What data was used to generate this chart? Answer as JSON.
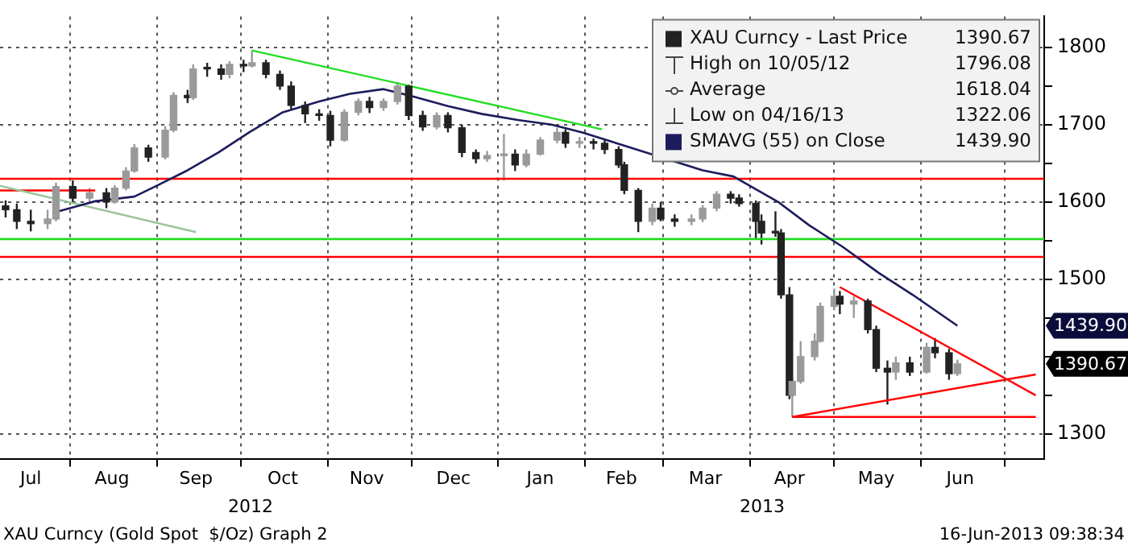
{
  "chart_data": {
    "type": "candlestick",
    "xlim": [
      "2012-07-07",
      "2013-07-15"
    ],
    "xticks": [
      {
        "value": "2012-07-18",
        "label": "Jul"
      },
      {
        "value": "2012-08-01",
        "label": null
      },
      {
        "value": "2012-08-16",
        "label": "Aug"
      },
      {
        "value": "2012-09-01",
        "label": null
      },
      {
        "value": "2012-09-15",
        "label": "Sep"
      },
      {
        "value": "2012-10-01",
        "label": null
      },
      {
        "value": "2012-10-16",
        "label": "Oct"
      },
      {
        "value": "2012-11-01",
        "label": null
      },
      {
        "value": "2012-11-15",
        "label": "Nov"
      },
      {
        "value": "2012-12-01",
        "label": null
      },
      {
        "value": "2012-12-16",
        "label": "Dec"
      },
      {
        "value": "2013-01-01",
        "label": null
      },
      {
        "value": "2013-01-16",
        "label": "Jan"
      },
      {
        "value": "2013-02-01",
        "label": null
      },
      {
        "value": "2013-02-14",
        "label": "Feb"
      },
      {
        "value": "2013-03-01",
        "label": null
      },
      {
        "value": "2013-03-16",
        "label": "Mar"
      },
      {
        "value": "2013-04-01",
        "label": null
      },
      {
        "value": "2013-04-15",
        "label": "Apr"
      },
      {
        "value": "2013-05-01",
        "label": null
      },
      {
        "value": "2013-05-16",
        "label": "May"
      },
      {
        "value": "2013-06-01",
        "label": null
      },
      {
        "value": "2013-06-15",
        "label": "Jun"
      },
      {
        "value": "2013-07-01",
        "label": null
      }
    ],
    "ylim": [
      1268,
      1840
    ],
    "yticks": [
      1300,
      {
        "value": 1350,
        "label": null
      },
      {
        "value": 1400,
        "label": null
      },
      {
        "value": 1450,
        "label": null
      },
      1500,
      {
        "value": 1550,
        "label": null
      },
      1600,
      {
        "value": 1650,
        "label": null
      },
      1700,
      {
        "value": 1750,
        "label": null
      },
      1800
    ],
    "grid": true,
    "legend": "top right",
    "series": [
      {
        "name": "XAU Curncy - Last Price",
        "color": "#222222",
        "colors": [
          "#222222",
          "#222222",
          "#222222",
          "#9a9a9a",
          "#9a9a9a",
          "#222222",
          "#9a9a9a",
          "#222222",
          "#9a9a9a",
          "#9a9a9a",
          "#9a9a9a",
          "#222222",
          "#9a9a9a",
          "#9a9a9a",
          "#222222",
          "#9a9a9a",
          "#222222",
          "#222222",
          "#9a9a9a",
          "#222222",
          "#9a9a9a",
          "#222222",
          "#222222",
          "#222222",
          "#222222",
          "#222222",
          "#222222",
          "#9a9a9a",
          "#9a9a9a",
          "#222222",
          "#9a9a9a",
          "#9a9a9a",
          "#222222",
          "#222222",
          "#9a9a9a",
          "#222222",
          "#222222",
          "#222222",
          "#9a9a9a",
          "#9a9a9a",
          "#222222",
          "#9a9a9a",
          "#9a9a9a",
          "#9a9a9a",
          "#222222",
          "#9a9a9a",
          "#222222",
          "#222222",
          "#222222",
          "#222222",
          "#222222",
          "#9a9a9a",
          "#222222",
          "#222222",
          "#9a9a9a",
          "#9a9a9a",
          "#9a9a9a",
          "#222222",
          "#222222",
          "#222222",
          "#222222",
          "#222222",
          "#222222",
          "#222222",
          "#9a9a9a",
          "#9a9a9a",
          "#9a9a9a",
          "#9a9a9a",
          "#9a9a9a",
          "#222222",
          "#9a9a9a",
          "#222222",
          "#222222",
          "#222222",
          "#9a9a9a",
          "#222222",
          "#9a9a9a",
          "#222222",
          "#222222",
          "#9a9a9a"
        ],
        "x": [
          "2012-07-09",
          "2012-07-13",
          "2012-07-18",
          "2012-07-24",
          "2012-07-27",
          "2012-08-02",
          "2012-08-08",
          "2012-08-14",
          "2012-08-17",
          "2012-08-21",
          "2012-08-24",
          "2012-08-29",
          "2012-09-04",
          "2012-09-07",
          "2012-09-12",
          "2012-09-14",
          "2012-09-19",
          "2012-09-24",
          "2012-09-27",
          "2012-10-02",
          "2012-10-05",
          "2012-10-10",
          "2012-10-15",
          "2012-10-19",
          "2012-10-24",
          "2012-10-29",
          "2012-11-02",
          "2012-11-07",
          "2012-11-12",
          "2012-11-16",
          "2012-11-21",
          "2012-11-26",
          "2012-11-30",
          "2012-12-05",
          "2012-12-10",
          "2012-12-14",
          "2012-12-19",
          "2012-12-24",
          "2012-12-28",
          "2013-01-03",
          "2013-01-07",
          "2013-01-11",
          "2013-01-16",
          "2013-01-22",
          "2013-01-25",
          "2013-01-30",
          "2013-02-04",
          "2013-02-08",
          "2013-02-13",
          "2013-02-15",
          "2013-02-20",
          "2013-02-25",
          "2013-02-28",
          "2013-03-05",
          "2013-03-11",
          "2013-03-15",
          "2013-03-20",
          "2013-03-25",
          "2013-03-28",
          "2013-04-03",
          "2013-04-05",
          "2013-04-10",
          "2013-04-12",
          "2013-04-15",
          "2013-04-16",
          "2013-04-19",
          "2013-04-24",
          "2013-04-26",
          "2013-05-01",
          "2013-05-03",
          "2013-05-08",
          "2013-05-13",
          "2013-05-16",
          "2013-05-20",
          "2013-05-23",
          "2013-05-28",
          "2013-06-03",
          "2013-06-06",
          "2013-06-11",
          "2013-06-14"
        ],
        "ohlc": [
          [
            1595,
            1602,
            1580,
            1590
          ],
          [
            1590,
            1598,
            1565,
            1575
          ],
          [
            1575,
            1590,
            1562,
            1572
          ],
          [
            1572,
            1590,
            1565,
            1578
          ],
          [
            1578,
            1625,
            1575,
            1620
          ],
          [
            1620,
            1628,
            1598,
            1605
          ],
          [
            1605,
            1618,
            1600,
            1612
          ],
          [
            1612,
            1618,
            1592,
            1600
          ],
          [
            1600,
            1622,
            1598,
            1618
          ],
          [
            1618,
            1645,
            1615,
            1640
          ],
          [
            1640,
            1675,
            1638,
            1670
          ],
          [
            1670,
            1674,
            1652,
            1658
          ],
          [
            1658,
            1698,
            1655,
            1693
          ],
          [
            1693,
            1742,
            1690,
            1738
          ],
          [
            1738,
            1745,
            1728,
            1735
          ],
          [
            1735,
            1778,
            1732,
            1772
          ],
          [
            1772,
            1780,
            1762,
            1772
          ],
          [
            1772,
            1778,
            1758,
            1765
          ],
          [
            1765,
            1782,
            1760,
            1778
          ],
          [
            1778,
            1784,
            1768,
            1776
          ],
          [
            1776,
            1796.08,
            1774,
            1780
          ],
          [
            1780,
            1784,
            1760,
            1765
          ],
          [
            1765,
            1770,
            1745,
            1750
          ],
          [
            1750,
            1756,
            1720,
            1725
          ],
          [
            1725,
            1730,
            1702,
            1714
          ],
          [
            1714,
            1720,
            1705,
            1712
          ],
          [
            1712,
            1718,
            1672,
            1680
          ],
          [
            1680,
            1720,
            1678,
            1716
          ],
          [
            1716,
            1734,
            1712,
            1730
          ],
          [
            1730,
            1736,
            1715,
            1722
          ],
          [
            1722,
            1734,
            1718,
            1730
          ],
          [
            1730,
            1755,
            1726,
            1750
          ],
          [
            1750,
            1752,
            1706,
            1712
          ],
          [
            1712,
            1718,
            1692,
            1697
          ],
          [
            1697,
            1716,
            1694,
            1712
          ],
          [
            1712,
            1716,
            1690,
            1696
          ],
          [
            1696,
            1700,
            1658,
            1664
          ],
          [
            1664,
            1668,
            1650,
            1656
          ],
          [
            1656,
            1666,
            1652,
            1660
          ],
          [
            1660,
            1688,
            1628,
            1662
          ],
          [
            1662,
            1668,
            1640,
            1648
          ],
          [
            1648,
            1668,
            1645,
            1662
          ],
          [
            1662,
            1684,
            1660,
            1680
          ],
          [
            1680,
            1696,
            1676,
            1690
          ],
          [
            1690,
            1694,
            1670,
            1676
          ],
          [
            1676,
            1684,
            1670,
            1678
          ],
          [
            1678,
            1682,
            1668,
            1676
          ],
          [
            1676,
            1680,
            1662,
            1668
          ],
          [
            1668,
            1672,
            1644,
            1648
          ],
          [
            1648,
            1652,
            1610,
            1615
          ],
          [
            1615,
            1618,
            1561,
            1575
          ],
          [
            1575,
            1598,
            1570,
            1592
          ],
          [
            1592,
            1600,
            1575,
            1578
          ],
          [
            1578,
            1584,
            1568,
            1575
          ],
          [
            1575,
            1584,
            1570,
            1578
          ],
          [
            1578,
            1596,
            1574,
            1592
          ],
          [
            1592,
            1614,
            1588,
            1610
          ],
          [
            1610,
            1614,
            1598,
            1605
          ],
          [
            1605,
            1610,
            1594,
            1598
          ],
          [
            1598,
            1602,
            1552,
            1575
          ],
          [
            1575,
            1584,
            1545,
            1560
          ],
          [
            1560,
            1588,
            1555,
            1560
          ],
          [
            1560,
            1565,
            1475,
            1480
          ],
          [
            1480,
            1490,
            1345,
            1350
          ],
          [
            1350,
            1370,
            1322.06,
            1368
          ],
          [
            1368,
            1420,
            1365,
            1400
          ],
          [
            1400,
            1430,
            1395,
            1420
          ],
          [
            1420,
            1470,
            1418,
            1465
          ],
          [
            1465,
            1488,
            1460,
            1478
          ],
          [
            1478,
            1485,
            1455,
            1468
          ],
          [
            1468,
            1478,
            1450,
            1472
          ],
          [
            1472,
            1475,
            1430,
            1435
          ],
          [
            1435,
            1440,
            1380,
            1385
          ],
          [
            1385,
            1395,
            1338,
            1380
          ],
          [
            1380,
            1400,
            1370,
            1392
          ],
          [
            1392,
            1400,
            1375,
            1380
          ],
          [
            1380,
            1418,
            1378,
            1412
          ],
          [
            1412,
            1424,
            1398,
            1405
          ],
          [
            1405,
            1410,
            1370,
            1378
          ],
          [
            1378,
            1396,
            1375,
            1390.67
          ]
        ]
      },
      {
        "name": "SMAVG (55) on Close",
        "type": "line",
        "color": "#1c1c5c",
        "x": [
          "2012-07-27",
          "2012-08-10",
          "2012-08-24",
          "2012-09-01",
          "2012-09-12",
          "2012-09-23",
          "2012-10-04",
          "2012-10-16",
          "2012-10-29",
          "2012-11-09",
          "2012-11-21",
          "2012-12-02",
          "2012-12-14",
          "2012-12-26",
          "2013-01-08",
          "2013-01-20",
          "2013-01-31",
          "2013-02-14",
          "2013-02-28",
          "2013-03-15",
          "2013-03-26",
          "2013-04-11",
          "2013-04-22",
          "2013-05-04",
          "2013-05-17",
          "2013-05-29",
          "2013-06-14"
        ],
        "values": [
          1587,
          1601,
          1607,
          1621,
          1641,
          1664,
          1690,
          1716,
          1730,
          1740,
          1746,
          1736,
          1724,
          1714,
          1706,
          1700,
          1690,
          1674,
          null,
          1641,
          1633,
          1600,
          1570,
          1542,
          1508,
          1480,
          1439.9
        ]
      },
      {
        "type": "line",
        "color": "#22dd22",
        "x": [
          "2012-10-05",
          "2013-02-07"
        ],
        "values": [
          1796,
          1694
        ]
      },
      {
        "type": "line",
        "color": "#99c499",
        "x": [
          "2012-07-07",
          "2012-09-15"
        ],
        "values": [
          1621,
          1561
        ]
      },
      {
        "type": "line",
        "color": "#ff0000",
        "x": [
          "2012-07-07",
          "2012-08-10"
        ],
        "values": [
          1615,
          1615
        ]
      },
      {
        "type": "line",
        "color": "#ff0000",
        "x": [
          "2013-05-03",
          "2013-07-12"
        ],
        "values": [
          1490,
          1350
        ]
      },
      {
        "type": "line",
        "color": "#ff0000",
        "x": [
          "2013-04-16",
          "2013-07-12"
        ],
        "values": [
          1322,
          1377
        ]
      },
      {
        "type": "line",
        "color": "#ff0000",
        "x": [
          "2013-04-16",
          "2013-07-12"
        ],
        "values": [
          1322,
          1322
        ]
      }
    ],
    "ref_lines": [
      {
        "axis": "y",
        "value": 1630,
        "color": "#ff0000"
      },
      {
        "axis": "y",
        "value": 1552,
        "color": "#22dd22"
      },
      {
        "axis": "y",
        "value": 1529,
        "color": "#ff0000"
      }
    ],
    "annotations": [
      "1390.67",
      "High on 10/05/12",
      "1796.08",
      "Average",
      "1618.04",
      "Low on 04/16/13",
      "1322.06",
      "1439.90",
      "1439.90",
      "1390.67",
      "2012",
      "2013",
      "XAU Curncy (Gold Spot  $/Oz) Graph 2",
      "16-Jun-2013 09:38:34"
    ]
  }
}
